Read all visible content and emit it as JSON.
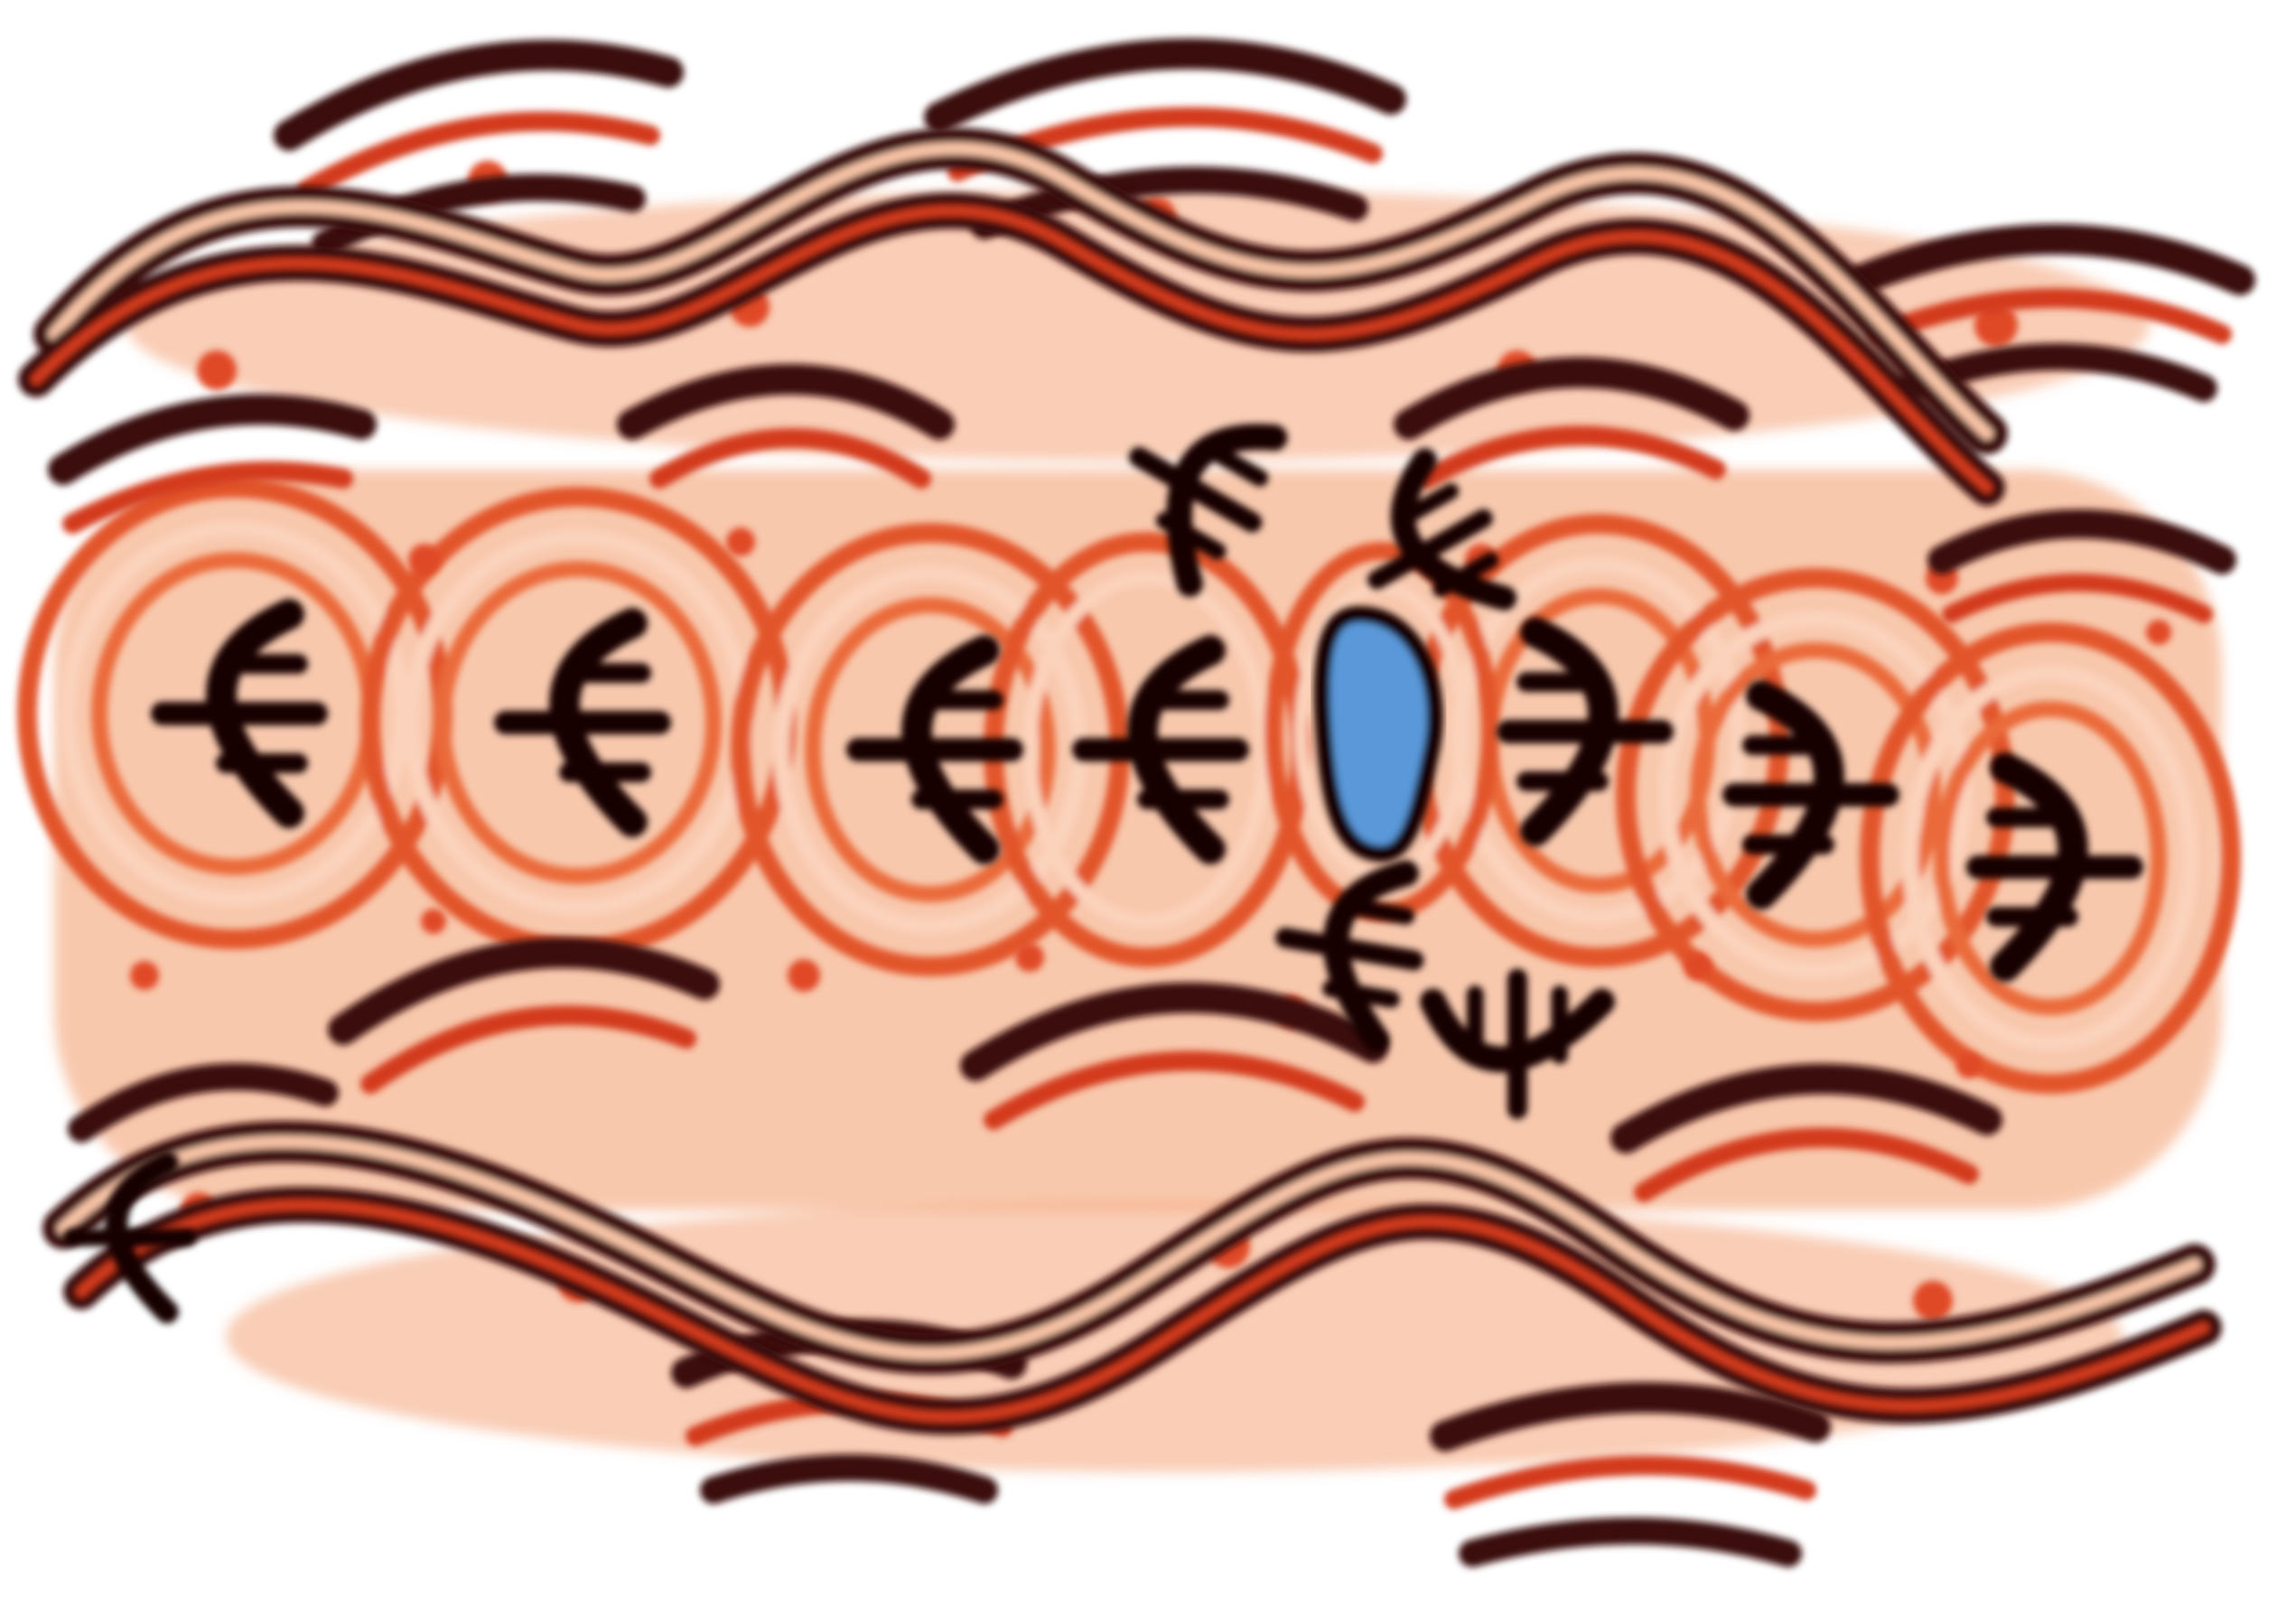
{
  "artwork": {
    "palette": {
      "background": "#ffffff",
      "dark_line": "#3a0d08",
      "red": "#d33a1f",
      "orange": "#ee7a43",
      "peach": "#f7c3a6",
      "pale": "#fde8dc",
      "waterhole_blue": "#5a98d9",
      "black": "#120405"
    },
    "motifs": [
      "wavy-lines",
      "concentric-arcs",
      "bird-tracks",
      "waterhole",
      "dotted-orange-ground"
    ]
  }
}
